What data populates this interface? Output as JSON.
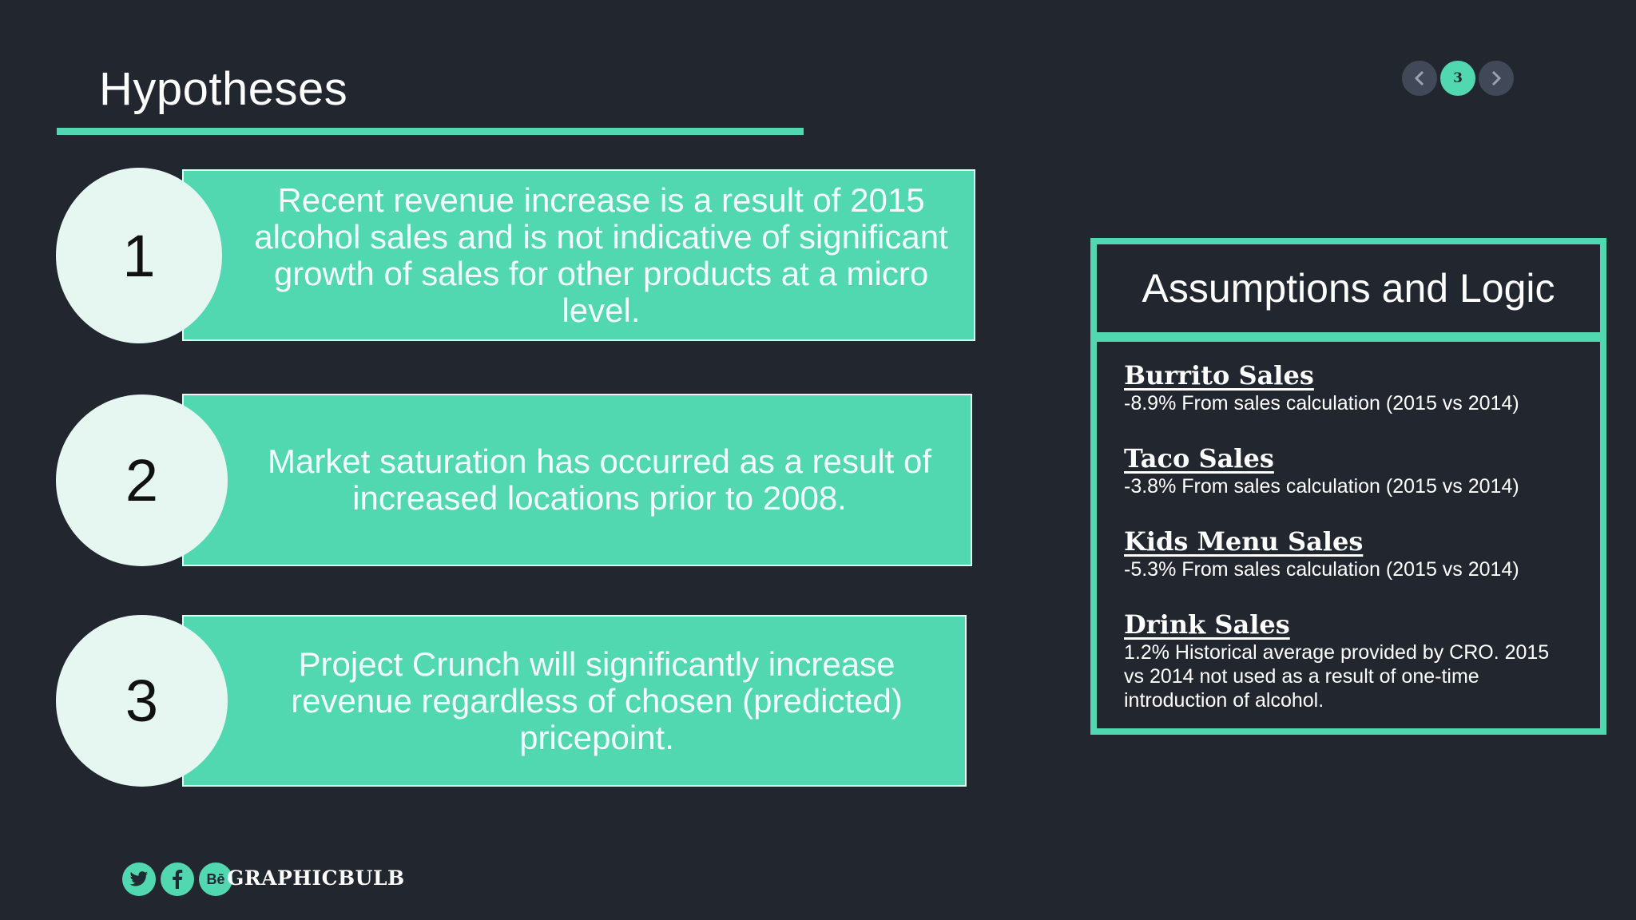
{
  "slide": {
    "title": "Hypotheses",
    "page_number": "3",
    "accent_color": "#52d8b0",
    "background_color": "#22262f"
  },
  "hypotheses": [
    {
      "number": "1",
      "text": "Recent revenue increase is a result of 2015 alcohol sales and is not indicative of significant growth of sales for other products at a micro level."
    },
    {
      "number": "2",
      "text": "Market saturation has occurred as a result of increased locations prior to 2008."
    },
    {
      "number": "3",
      "text": "Project Crunch will significantly increase revenue regardless of chosen (predicted) pricepoint."
    }
  ],
  "assumptions": {
    "heading": "Assumptions and Logic",
    "items": [
      {
        "title": "Burrito Sales",
        "text": "-8.9% From sales calculation (2015 vs 2014)"
      },
      {
        "title": "Taco Sales",
        "text": "-3.8% From sales calculation (2015 vs 2014)"
      },
      {
        "title": "Kids Menu Sales",
        "text": "-5.3% From sales calculation (2015 vs 2014)"
      },
      {
        "title": "Drink Sales",
        "text": "1.2% Historical average provided by CRO. 2015 vs 2014 not used as a result of one-time introduction of alcohol."
      }
    ]
  },
  "footer": {
    "icons": [
      "twitter-icon",
      "facebook-icon",
      "behance-icon"
    ],
    "behance_label": "Bē",
    "brand": "GRAPHICBULB"
  }
}
